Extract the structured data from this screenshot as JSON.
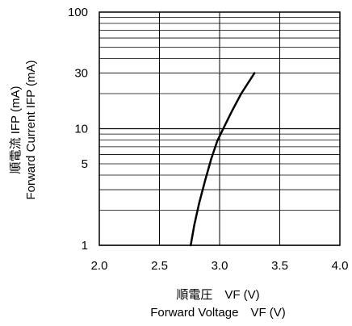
{
  "chart_data": {
    "type": "line",
    "xlabel_jp": "順電圧　VF (V)",
    "xlabel_en": "Forward Voltage　VF (V)",
    "ylabel_jp": "順電流 IFP (mA)",
    "ylabel_en": "Forward Current IFP (mA)",
    "xlim": [
      2.0,
      4.0
    ],
    "ylim": [
      1,
      100
    ],
    "y_scale": "log",
    "grid": true,
    "x_ticks": [
      "2.0",
      "2.5",
      "3.0",
      "3.5",
      "4.0"
    ],
    "y_ticks": [
      "1",
      "5",
      "10",
      "30",
      "100"
    ],
    "series": [
      {
        "x": [
          2.76,
          2.79,
          2.83,
          2.88,
          2.93,
          2.98,
          3.03,
          3.1,
          3.18,
          3.24,
          3.29
        ],
        "y": [
          1,
          1.5,
          2.3,
          3.6,
          5.5,
          7.8,
          10,
          14,
          20,
          25,
          30
        ]
      }
    ]
  }
}
